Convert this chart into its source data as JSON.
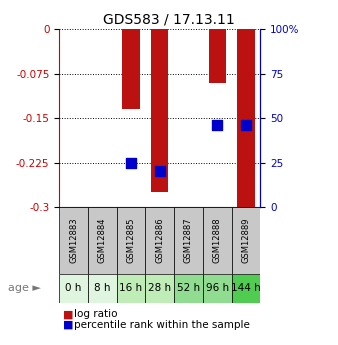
{
  "title": "GDS583 / 17.13.11",
  "samples": [
    "GSM12883",
    "GSM12884",
    "GSM12885",
    "GSM12886",
    "GSM12887",
    "GSM12888",
    "GSM12889"
  ],
  "ages": [
    "0 h",
    "8 h",
    "16 h",
    "28 h",
    "52 h",
    "96 h",
    "144 h"
  ],
  "log_ratio": [
    0.0,
    0.0,
    -0.135,
    -0.275,
    0.0,
    -0.09,
    -0.3
  ],
  "percentile_rank": [
    null,
    null,
    25,
    20,
    null,
    46,
    46
  ],
  "ylim": [
    -0.3,
    0.0
  ],
  "yticks": [
    0,
    -0.075,
    -0.15,
    -0.225,
    -0.3
  ],
  "ytick_labels": [
    "0",
    "-0.075",
    "-0.15",
    "-0.225",
    "-0.3"
  ],
  "y2ticks": [
    0,
    25,
    50,
    75,
    100
  ],
  "y2tick_labels": [
    "0",
    "25",
    "50",
    "75",
    "100%"
  ],
  "bar_color": "#bb1111",
  "dot_color": "#0000cc",
  "bar_width": 0.6,
  "dot_size": 55,
  "age_colors": [
    "#e0f5e0",
    "#e0f5e0",
    "#c0ecb8",
    "#c0ecb8",
    "#90dc90",
    "#90dc90",
    "#50cc50"
  ],
  "sample_bg_color": "#c8c8c8",
  "left_axis_color": "#cc0000",
  "right_axis_color": "#0000cc",
  "title_fontsize": 10
}
